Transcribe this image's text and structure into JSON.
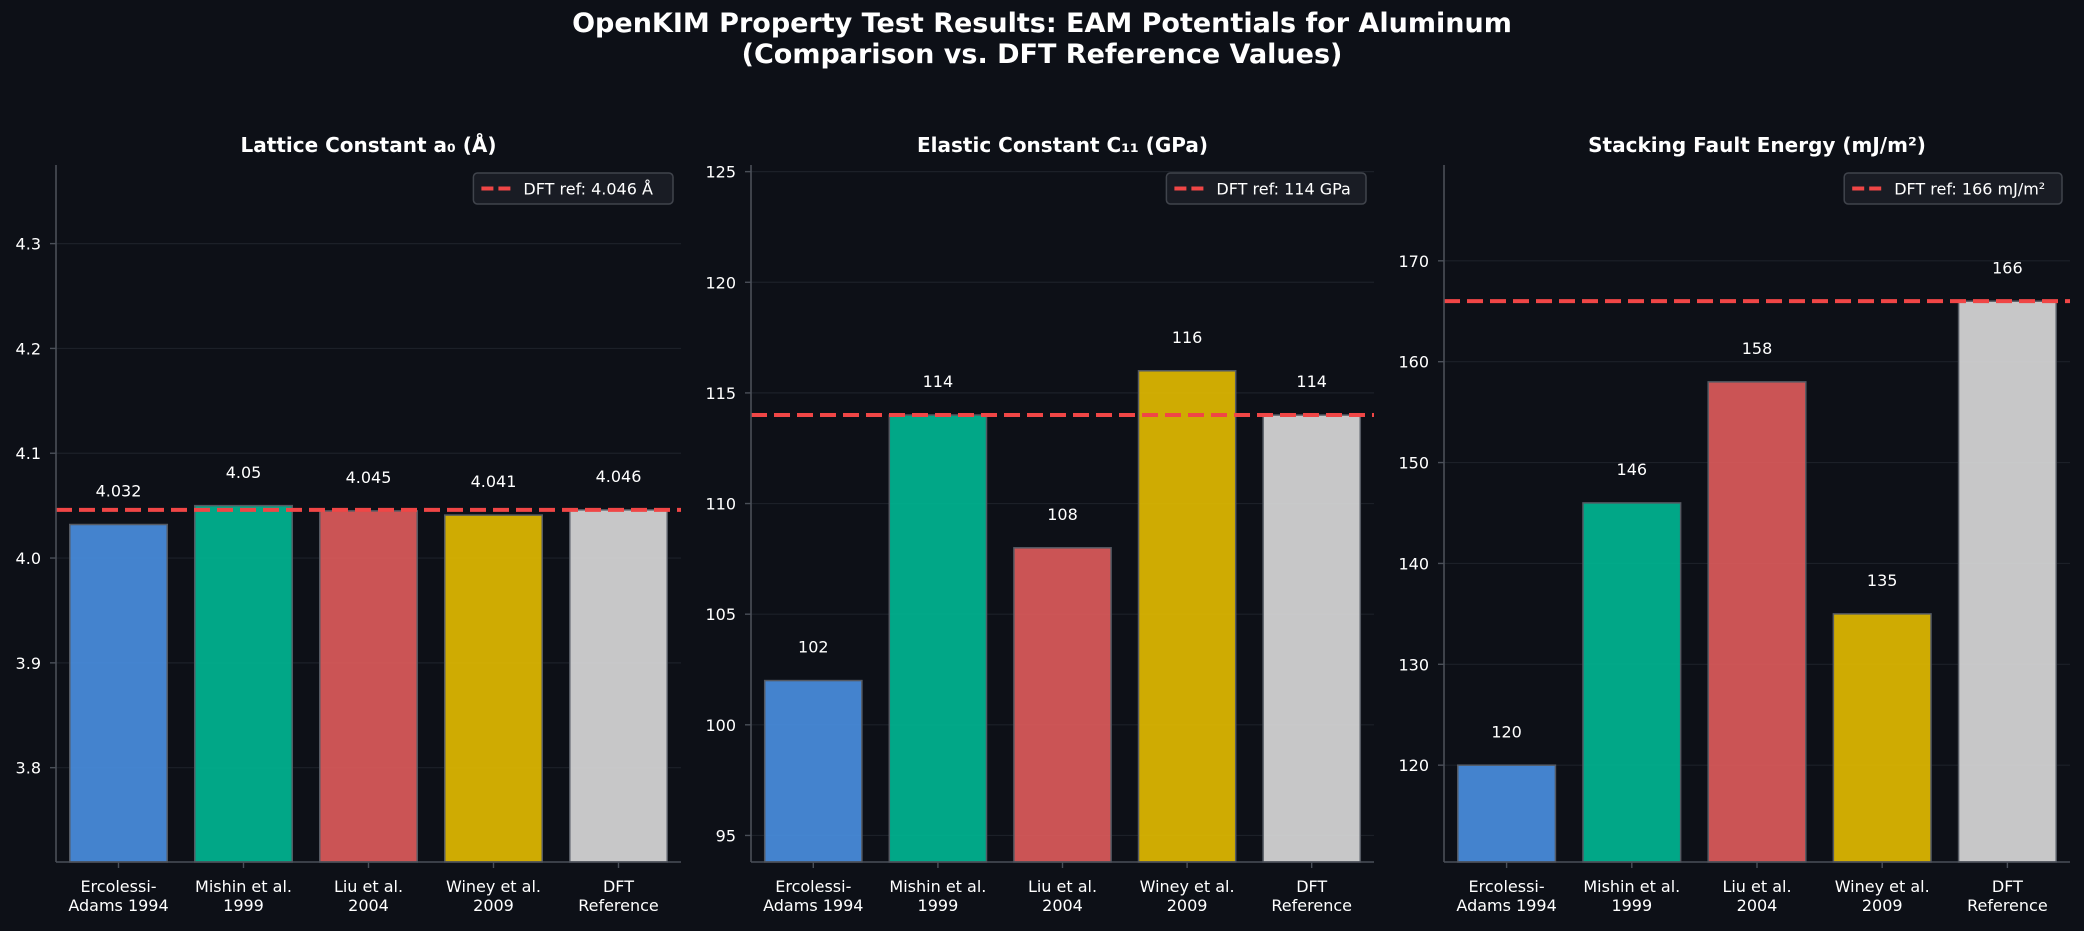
{
  "figure": {
    "title_line1": "OpenKIM Property Test Results: EAM Potentials for Aluminum",
    "title_line2": "(Comparison vs. DFT Reference Values)"
  },
  "colors": {
    "background": "#0d1017",
    "axis": "#4a4f58",
    "grid": "#1c2028",
    "reference_line": "#f04646",
    "bars": [
      "#4a90e2",
      "#00b894",
      "#e05c5c",
      "#e4bc00",
      "#dcdcdc"
    ]
  },
  "chart_data": [
    {
      "type": "bar",
      "title": "Lattice Constant a₀ (Å)",
      "categories": [
        [
          "Ercolessi-",
          "Adams 1994"
        ],
        [
          "Mishin et al.",
          "1999"
        ],
        [
          "Liu et al.",
          "2004"
        ],
        [
          "Winey et al.",
          "2009"
        ],
        [
          "DFT",
          "Reference"
        ]
      ],
      "values": [
        4.032,
        4.05,
        4.045,
        4.041,
        4.046
      ],
      "value_labels": [
        "4.032",
        "4.05",
        "4.045",
        "4.041",
        "4.046"
      ],
      "ylim": [
        3.71,
        4.375
      ],
      "yticks": [
        3.8,
        3.9,
        4.0,
        4.1,
        4.2,
        4.3
      ],
      "ytick_labels": [
        "3.8",
        "3.9",
        "4.0",
        "4.1",
        "4.2",
        "4.3"
      ],
      "reference": {
        "value": 4.046,
        "label": "DFT ref: 4.046 Å"
      },
      "legend_position": "top-right",
      "grid": true
    },
    {
      "type": "bar",
      "title": "Elastic Constant C₁₁ (GPa)",
      "categories": [
        [
          "Ercolessi-",
          "Adams 1994"
        ],
        [
          "Mishin et al.",
          "1999"
        ],
        [
          "Liu et al.",
          "2004"
        ],
        [
          "Winey et al.",
          "2009"
        ],
        [
          "DFT",
          "Reference"
        ]
      ],
      "values": [
        102,
        114,
        108,
        116,
        114
      ],
      "value_labels": [
        "102",
        "114",
        "108",
        "116",
        "114"
      ],
      "ylim": [
        93.8,
        125.3
      ],
      "yticks": [
        95,
        100,
        105,
        110,
        115,
        120,
        125
      ],
      "ytick_labels": [
        "95",
        "100",
        "105",
        "110",
        "115",
        "120",
        "125"
      ],
      "reference": {
        "value": 114,
        "label": "DFT ref: 114 GPa"
      },
      "legend_position": "top-right",
      "grid": true
    },
    {
      "type": "bar",
      "title": "Stacking Fault Energy (mJ/m²)",
      "categories": [
        [
          "Ercolessi-",
          "Adams 1994"
        ],
        [
          "Mishin et al.",
          "1999"
        ],
        [
          "Liu et al.",
          "2004"
        ],
        [
          "Winey et al.",
          "2009"
        ],
        [
          "DFT",
          "Reference"
        ]
      ],
      "values": [
        120,
        146,
        158,
        135,
        166
      ],
      "value_labels": [
        "120",
        "146",
        "158",
        "135",
        "166"
      ],
      "ylim": [
        110.4,
        179.5
      ],
      "yticks": [
        120,
        130,
        140,
        150,
        160,
        170
      ],
      "ytick_labels": [
        "120",
        "130",
        "140",
        "150",
        "160",
        "170"
      ],
      "reference": {
        "value": 166,
        "label": "DFT ref: 166 mJ/m²"
      },
      "legend_position": "top-right",
      "grid": true
    }
  ]
}
